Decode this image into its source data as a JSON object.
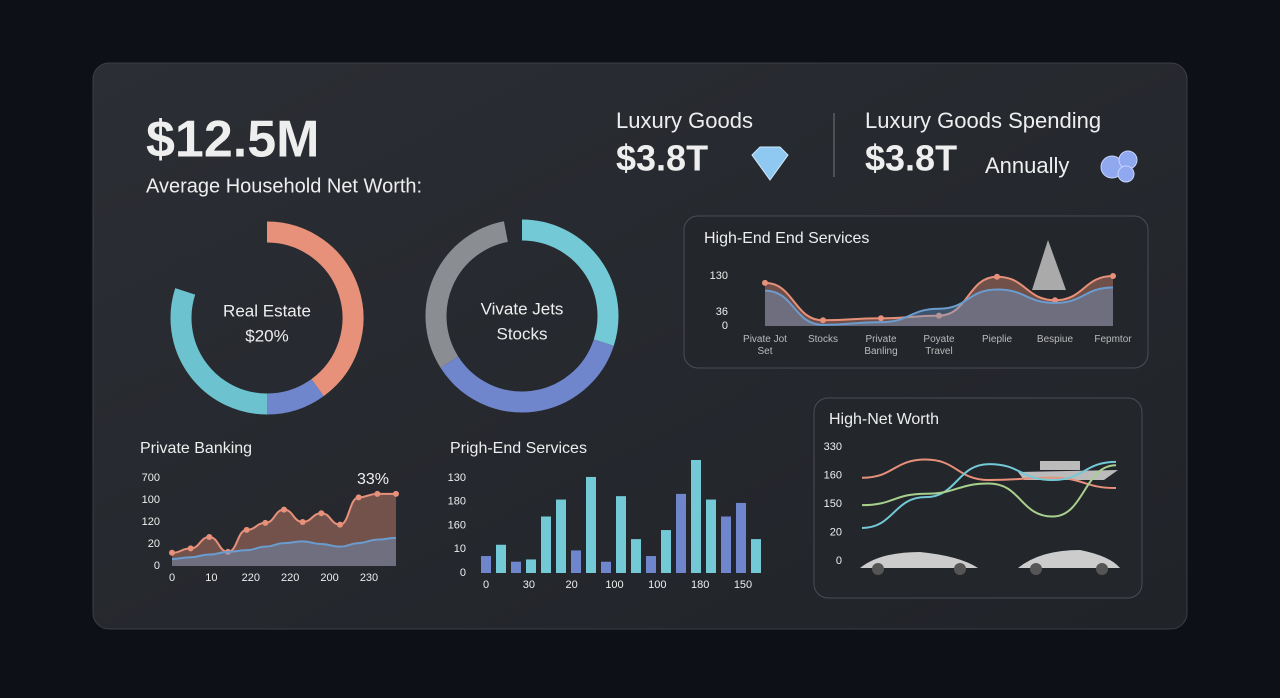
{
  "kpis": [
    {
      "value": "$12.5M",
      "label": "Average Household Net Worth:"
    },
    {
      "label": "Luxury Goods",
      "value": "$3.8T"
    },
    {
      "label": "Luxury Goods Spending",
      "value": "$3.8T",
      "note": "Annually"
    }
  ],
  "chart_data": [
    {
      "type": "donut",
      "center_text": [
        "Real Estate",
        "$20%"
      ],
      "values": [
        40,
        10,
        30
      ],
      "colors": [
        "#e8917a",
        "#6f86cc",
        "#6cc3cf"
      ]
    },
    {
      "type": "donut",
      "center_text": [
        "Vivate Jets",
        "Stocks"
      ],
      "values": [
        30,
        36,
        31
      ],
      "colors": [
        "#73c9d6",
        "#6f86cc",
        "#8a8d92"
      ]
    },
    {
      "type": "area",
      "title": "High-End End Services",
      "categories": [
        "Pivate Jot Set",
        "Stocks",
        "Private Banling",
        "Poyate Travel",
        "Pieplie",
        "Bespiue",
        "Fepmtor"
      ],
      "ylim": [
        0,
        130
      ],
      "yticks": [
        0,
        36,
        130
      ],
      "series": [
        {
          "color": "#e8917a",
          "values": [
            112,
            15,
            20,
            27,
            128,
            67,
            130
          ]
        },
        {
          "color": "#6a9ccf",
          "values": [
            92,
            3,
            10,
            45,
            95,
            60,
            100
          ]
        }
      ]
    },
    {
      "type": "area",
      "title": "Private Banking",
      "xlabels": [
        "0",
        "10",
        "220",
        "220",
        "200",
        "230"
      ],
      "ylabels": [
        "700",
        "100",
        "120",
        "20",
        "0"
      ],
      "ylim": [
        0,
        100
      ],
      "annotation": "33%",
      "series": [
        {
          "color": "#e8917a",
          "values": [
            15,
            20,
            33,
            16,
            41,
            49,
            64,
            50,
            60,
            47,
            78,
            82,
            82
          ]
        },
        {
          "color": "#6a9ccf",
          "values": [
            8,
            10,
            13,
            16,
            18,
            22,
            26,
            28,
            25,
            22,
            26,
            30,
            32
          ]
        }
      ]
    },
    {
      "type": "bar",
      "title": "Prigh-End Services",
      "xlabels": [
        "0",
        "30",
        "20",
        "100",
        "100",
        "180",
        "150"
      ],
      "ylabels": [
        "130",
        "180",
        "160",
        "10",
        "0"
      ],
      "ylim": [
        0,
        100
      ],
      "values": [
        15,
        25,
        10,
        12,
        50,
        65,
        20,
        85,
        10,
        68,
        30,
        15,
        38,
        70,
        100,
        65,
        50,
        62,
        30
      ],
      "colors": [
        "#6f86cc",
        "#73c9d6",
        "#6f86cc",
        "#73c9d6",
        "#73c9d6",
        "#73c9d6",
        "#6f86cc",
        "#73c9d6",
        "#6f86cc",
        "#73c9d6",
        "#73c9d6",
        "#6f86cc",
        "#73c9d6",
        "#6f86cc",
        "#73c9d6",
        "#73c9d6",
        "#6f86cc",
        "#6f86cc",
        "#73c9d6"
      ]
    },
    {
      "type": "line",
      "title": "High-Net Worth",
      "ylabels": [
        "330",
        "160",
        "150",
        "20",
        "0"
      ],
      "ylim": [
        0,
        100
      ],
      "series": [
        {
          "color": "#e8917a",
          "values": [
            73,
            89,
            71,
            73,
            64
          ]
        },
        {
          "color": "#73c9d6",
          "values": [
            29,
            56,
            85,
            71,
            87
          ]
        },
        {
          "color": "#a8d08d",
          "values": [
            49,
            59,
            68,
            39,
            84
          ]
        }
      ]
    }
  ]
}
